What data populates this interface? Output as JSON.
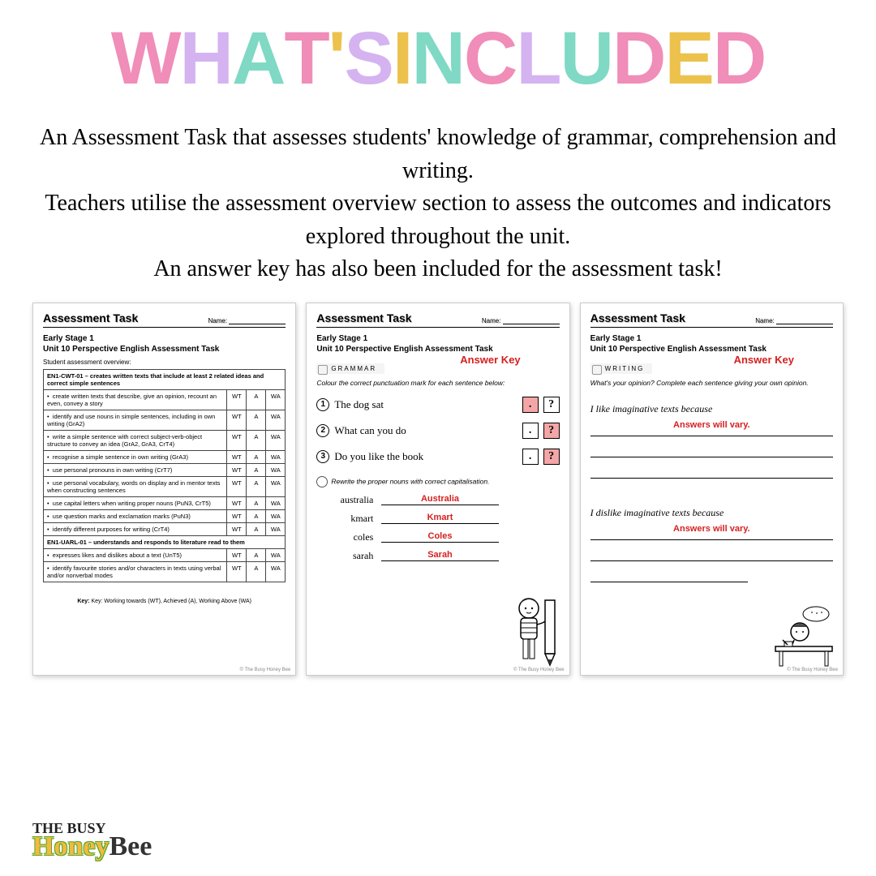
{
  "title_letters": [
    {
      "t": "W",
      "c": "#f08db8"
    },
    {
      "t": "H",
      "c": "#d4b3f0"
    },
    {
      "t": "A",
      "c": "#7fd9c4"
    },
    {
      "t": "T",
      "c": "#f08db8"
    },
    {
      "t": "'",
      "c": "#ecc24d"
    },
    {
      "t": "S",
      "c": "#d4b3f0"
    },
    {
      "t": " ",
      "c": "#000"
    },
    {
      "t": "I",
      "c": "#ecc24d"
    },
    {
      "t": "N",
      "c": "#7fd9c4"
    },
    {
      "t": "C",
      "c": "#f08db8"
    },
    {
      "t": "L",
      "c": "#d4b3f0"
    },
    {
      "t": "U",
      "c": "#7fd9c4"
    },
    {
      "t": "D",
      "c": "#f08db8"
    },
    {
      "t": "E",
      "c": "#ecc24d"
    },
    {
      "t": "D",
      "c": "#f08db8"
    }
  ],
  "description": "An Assessment Task that assesses students' knowledge of grammar, comprehension and writing.\nTeachers utilise the assessment overview section to assess the outcomes and indicators explored throughout the unit.\nAn answer key has also been included for the assessment task!",
  "sheet_header": "Assessment Task",
  "name_label": "Name:",
  "stage": "Early Stage 1",
  "unit_title": "Unit 10 Perspective English Assessment Task",
  "overview_label": "Student assessment overview:",
  "answer_key": "Answer Key",
  "answers_vary": "Answers will vary.",
  "copyright": "© The Busy Honey Bee",
  "key_line": "Key: Working towards (WT), Achieved (A), Working Above (WA)",
  "rubric": {
    "cols": [
      "WT",
      "A",
      "WA"
    ],
    "groups": [
      {
        "h": "EN1-CWT-01 – creates written texts that include at least 2 related ideas and correct simple sentences",
        "rows": [
          "create written texts that describe, give an opinion, recount an even, convey a story",
          "identify and use nouns in simple sentences, including in own writing (GrA2)",
          "write a simple sentence with correct subject-verb-object structure to convey an idea (GrA2, GrA3, CrT4)",
          "recognise a simple sentence in own writing (GrA3)",
          "use personal pronouns in own writing (CrT7)",
          "use personal vocabulary, words on display and in mentor texts when constructing sentences",
          "use capital letters when writing proper nouns (PuN3, CrT5)",
          "use question marks and exclamation marks (PuN3)",
          "identify different purposes for writing (CrT4)"
        ]
      },
      {
        "h": "EN1-UARL-01 – understands and responds to literature read to them",
        "rows": [
          "expresses likes and dislikes about a text (UnT5)",
          "identify favourite stories and/or characters in texts using verbal and/or nonverbal modes"
        ]
      }
    ]
  },
  "grammar": {
    "tag": "GRAMMAR",
    "instr": "Colour the correct punctuation mark for each sentence below:",
    "lines": [
      {
        "n": "1",
        "t": "The dog sat",
        "sel": 0
      },
      {
        "n": "2",
        "t": "What can you do",
        "sel": 1
      },
      {
        "n": "3",
        "t": "Do you like the book",
        "sel": 1
      }
    ],
    "instr2": "Rewrite the proper nouns with correct capitalisation.",
    "nouns": [
      {
        "o": "australia",
        "a": "Australia"
      },
      {
        "o": "kmart",
        "a": "Kmart"
      },
      {
        "o": "coles",
        "a": "Coles"
      },
      {
        "o": "sarah",
        "a": "Sarah"
      }
    ]
  },
  "writing": {
    "tag": "WRITING",
    "instr": "What's your opinion? Complete each sentence giving your own opinion.",
    "p1": "I like imaginative texts because",
    "p2": "I dislike imaginative texts because"
  },
  "logo": {
    "l1": "THE BUSY",
    "honey": "Honey",
    "bee": "Bee"
  }
}
